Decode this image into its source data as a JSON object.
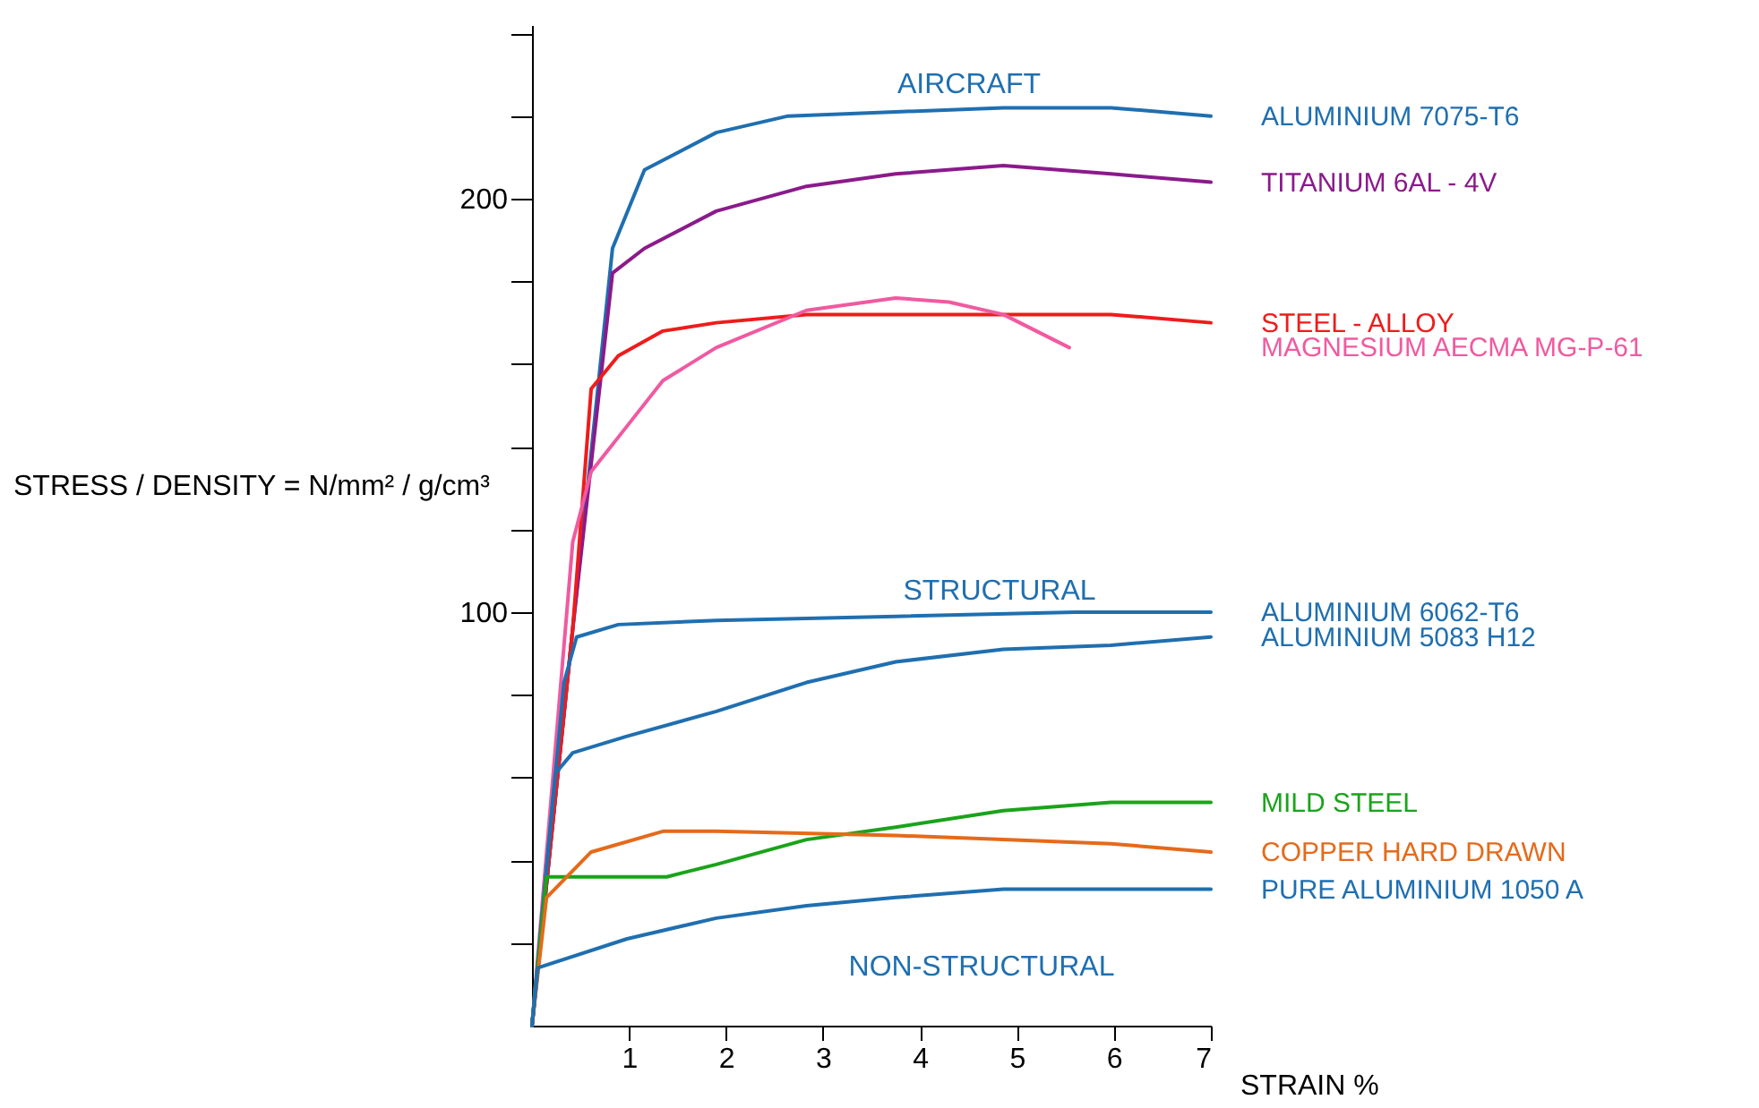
{
  "chart_data": {
    "type": "line",
    "xlabel": "STRAIN %",
    "ylabel": "STRESS / DENSITY = N/mm² / g/cm³",
    "xlim": [
      0,
      7
    ],
    "ylim": [
      0,
      242
    ],
    "xticks": [
      1,
      2,
      3,
      4,
      5,
      6,
      7
    ],
    "yticks": [
      {
        "value": 20,
        "label": null
      },
      {
        "value": 40,
        "label": null
      },
      {
        "value": 60,
        "label": null
      },
      {
        "value": 80,
        "label": null
      },
      100,
      {
        "value": 120,
        "label": null
      },
      {
        "value": 140,
        "label": null
      },
      {
        "value": 160,
        "label": null
      },
      {
        "value": 180,
        "label": null
      },
      200,
      {
        "value": 220,
        "label": null
      },
      {
        "value": 240,
        "label": null
      }
    ],
    "grid": false,
    "line_style": "solid",
    "marker": "none",
    "annotations": [
      "AIRCRAFT",
      "STRUCTURAL",
      "NON-STRUCTURAL"
    ],
    "series": [
      {
        "name": "ALUMINIUM 7075-T6",
        "color": "#1f6fb0",
        "x": [
          0,
          0.42,
          0.83,
          1.16,
          1.9,
          2.64,
          3.75,
          4.86,
          5.97,
          7
        ],
        "values": [
          0,
          96,
          188,
          207,
          216,
          220,
          221,
          222,
          222,
          220
        ]
      },
      {
        "name": "TITANIUM 6AL - 4V",
        "color": "#8b1a8b",
        "x": [
          0,
          0.42,
          0.83,
          1.16,
          1.9,
          2.83,
          3.75,
          4.86,
          5.97,
          7
        ],
        "values": [
          0,
          96,
          182,
          188,
          197,
          203,
          206,
          208,
          206,
          204
        ]
      },
      {
        "name": "STEEL - ALLOY",
        "color": "#ee1c1c",
        "x": [
          0,
          0.42,
          0.61,
          0.89,
          1.35,
          1.9,
          2.83,
          4.67,
          5.97,
          7
        ],
        "values": [
          0,
          96,
          154,
          162,
          168,
          170,
          172,
          172,
          172,
          170
        ]
      },
      {
        "name": "MAGNESIUM AECMA MG-P-61",
        "color": "#f05aa0",
        "x": [
          0,
          0.42,
          0.61,
          0.98,
          1.35,
          1.9,
          2.83,
          3.75,
          4.3,
          4.86,
          5.54
        ],
        "values": [
          0,
          117,
          134,
          145,
          156,
          164,
          173,
          176,
          175,
          172,
          164
        ]
      },
      {
        "name": "ALUMINIUM 6062-T6",
        "color": "#1f6fb0",
        "x": [
          0,
          0.33,
          0.46,
          0.89,
          1.9,
          3.75,
          5.6,
          7
        ],
        "values": [
          0,
          83,
          94,
          97,
          98,
          99,
          100,
          100
        ]
      },
      {
        "name": "ALUMINIUM 5083 H12",
        "color": "#1f6fb0",
        "x": [
          0,
          0.24,
          0.42,
          0.98,
          1.9,
          2.83,
          3.75,
          4.86,
          5.97,
          7
        ],
        "values": [
          0,
          61,
          66,
          70,
          76,
          83,
          88,
          91,
          92,
          94
        ]
      },
      {
        "name": "MILD STEEL",
        "color": "#1aa31a",
        "x": [
          0,
          0.15,
          1.39,
          1.9,
          2.83,
          3.75,
          4.86,
          5.97,
          7
        ],
        "values": [
          0,
          36,
          36,
          39,
          45,
          48,
          52,
          54,
          54
        ]
      },
      {
        "name": "COPPER HARD DRAWN",
        "color": "#e56a1a",
        "x": [
          0,
          0.15,
          0.61,
          1.35,
          1.9,
          3.75,
          4.86,
          5.97,
          7
        ],
        "values": [
          0,
          31,
          42,
          47,
          47,
          46,
          45,
          44,
          42
        ]
      },
      {
        "name": "PURE ALUMINIUM 1050 A",
        "color": "#1f6fb0",
        "x": [
          0,
          0.06,
          0.98,
          1.9,
          2.83,
          3.75,
          4.86,
          5.97,
          7
        ],
        "values": [
          0,
          14,
          21,
          26,
          29,
          31,
          33,
          33,
          33
        ]
      }
    ]
  }
}
